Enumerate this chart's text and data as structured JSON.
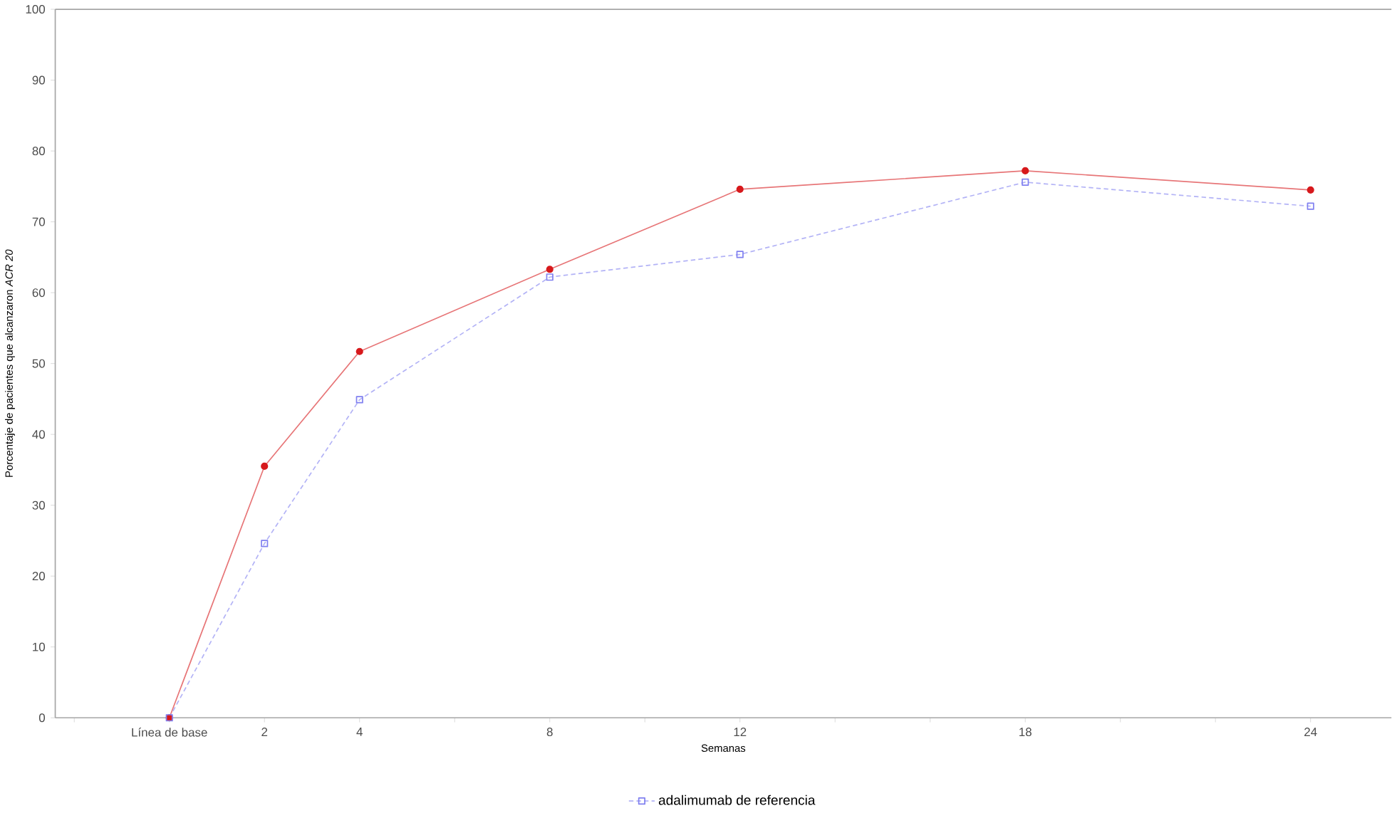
{
  "chart_data": {
    "type": "line",
    "xlabel": "Semanas",
    "ylabel": "Porcentaje de pacientes que alcanzaron *ACR 20*",
    "x": [
      0,
      2,
      4,
      8,
      12,
      18,
      24
    ],
    "series": [
      {
        "color": "#d7191c",
        "values": [
          0,
          35.5,
          51.7,
          63.3,
          74.6,
          77.2,
          74.5
        ],
        "marker": "circle",
        "line_style": "solid"
      },
      {
        "name": "adalimumab de referencia",
        "color": "#8080f0",
        "values": [
          0,
          24.6,
          44.9,
          62.2,
          65.4,
          75.6,
          72.2
        ],
        "marker": "square",
        "line_style": "dashed"
      }
    ],
    "xlim": [
      -2.4,
      25.7
    ],
    "xticks": [
      {
        "value": -2,
        "label": null
      },
      {
        "value": 0,
        "label": "Línea de base"
      },
      2,
      4,
      {
        "value": 6,
        "label": null
      },
      8,
      {
        "value": 10,
        "label": null
      },
      12,
      {
        "value": 14,
        "label": null
      },
      {
        "value": 16,
        "label": null
      },
      18,
      {
        "value": 20,
        "label": null
      },
      {
        "value": 22,
        "label": null
      },
      24
    ],
    "ylim": [
      0,
      100
    ],
    "yticks": [
      0,
      10,
      20,
      30,
      40,
      50,
      60,
      70,
      80,
      90,
      100
    ],
    "grid": false,
    "legend": "bottom"
  }
}
